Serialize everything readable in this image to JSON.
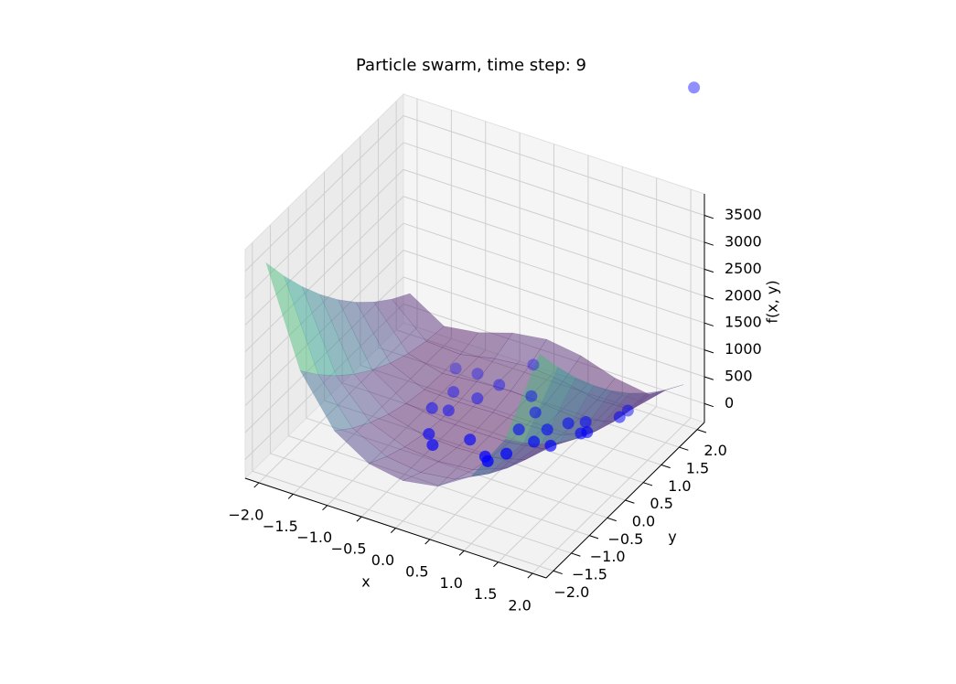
{
  "chart_data": {
    "type": "scatter3d",
    "title": "Particle swarm, time step: 9",
    "xlabel": "x",
    "ylabel": "y",
    "zlabel": "f(x, y)",
    "xlim": [
      -2.2,
      2.2
    ],
    "ylim": [
      -2.2,
      2.2
    ],
    "zlim": [
      -350,
      3900
    ],
    "xticks": [
      {
        "value": -2,
        "label": "−2.0"
      },
      {
        "value": -1.5,
        "label": "−1.5"
      },
      {
        "value": -1,
        "label": "−1.0"
      },
      {
        "value": -0.5,
        "label": "−0.5"
      },
      {
        "value": 0,
        "label": "0.0"
      },
      {
        "value": 0.5,
        "label": "0.5"
      },
      {
        "value": 1,
        "label": "1.0"
      },
      {
        "value": 1.5,
        "label": "1.5"
      },
      {
        "value": 2,
        "label": "2.0"
      }
    ],
    "yticks": [
      {
        "value": -2,
        "label": "−2.0"
      },
      {
        "value": -1.5,
        "label": "−1.5"
      },
      {
        "value": -1,
        "label": "−1.0"
      },
      {
        "value": -0.5,
        "label": "−0.5"
      },
      {
        "value": 0,
        "label": "0.0"
      },
      {
        "value": 0.5,
        "label": "0.5"
      },
      {
        "value": 1,
        "label": "1.0"
      },
      {
        "value": 1.5,
        "label": "1.5"
      },
      {
        "value": 2,
        "label": "2.0"
      }
    ],
    "zticks": [
      0,
      500,
      1000,
      1500,
      2000,
      2500,
      3000,
      3500
    ],
    "grid": true,
    "surface": {
      "colormap": "viridis",
      "alpha": 0.45,
      "x": [
        -2,
        -1.5,
        -1,
        -0.5,
        0,
        0.5,
        1,
        1.5,
        2
      ],
      "y": [
        -2,
        -1.5,
        -1,
        -0.5,
        0,
        0.5,
        1,
        1.5,
        2
      ],
      "z": [
        [
          3609,
          1812.5,
          904,
          508.5,
          401,
          506.5,
          900,
          1806.5,
          3601
        ],
        [
          3034,
          1412.5,
          629,
          308.5,
          226,
          306.5,
          625,
          1406.5,
          3026
        ],
        [
          2509,
          1062.5,
          404,
          158.5,
          101,
          156.5,
          400,
          1056.5,
          2501
        ],
        [
          2034,
          762.5,
          229,
          58.5,
          26,
          56.5,
          225,
          756.5,
          2026
        ],
        [
          1609,
          512.5,
          104,
          8.5,
          1,
          6.5,
          100,
          506.5,
          1601
        ],
        [
          1234,
          312.5,
          29,
          8.5,
          26,
          6.5,
          25,
          306.5,
          1226
        ],
        [
          909,
          162.5,
          4,
          58.5,
          101,
          56.5,
          0,
          156.5,
          901
        ],
        [
          634,
          62.5,
          29,
          158.5,
          226,
          156.5,
          25,
          56.5,
          626
        ],
        [
          409,
          12.5,
          104,
          308.5,
          401,
          306.5,
          100,
          6.5,
          401
        ]
      ]
    },
    "series": [
      {
        "color": "#0000ff",
        "x": [
          -0.9,
          -0.57,
          -0.19,
          -0.67,
          -0.32,
          -0.72,
          -0.52,
          -0.45,
          -0.28,
          0.04,
          0.42,
          0.52,
          0.62,
          0.04,
          0.28,
          0.47,
          0.46,
          0.77,
          0.77,
          1.04,
          0.93,
          1.11,
          1.23,
          1.3,
          1.48,
          1.47,
          2.1
        ],
        "y": [
          1.18,
          1.16,
          1.04,
          0.68,
          0.68,
          0.18,
          0.26,
          -0.42,
          -0.64,
          -0.21,
          -0.51,
          -0.63,
          -0.3,
          1.55,
          1.04,
          0.79,
          0.35,
          0.18,
          0.55,
          0.13,
          0.83,
          0.97,
          0.61,
          0.65,
          1.21,
          1.46,
          2.1
        ],
        "z": [
          17,
          72,
          102,
          8,
          35,
          14,
          2,
          41,
          53,
          5,
          47,
          81,
          47,
          241,
          93,
          33,
          2,
          17,
          0,
          90,
          0,
          7,
          82,
          108,
          96,
          49,
          5900
        ]
      }
    ]
  }
}
